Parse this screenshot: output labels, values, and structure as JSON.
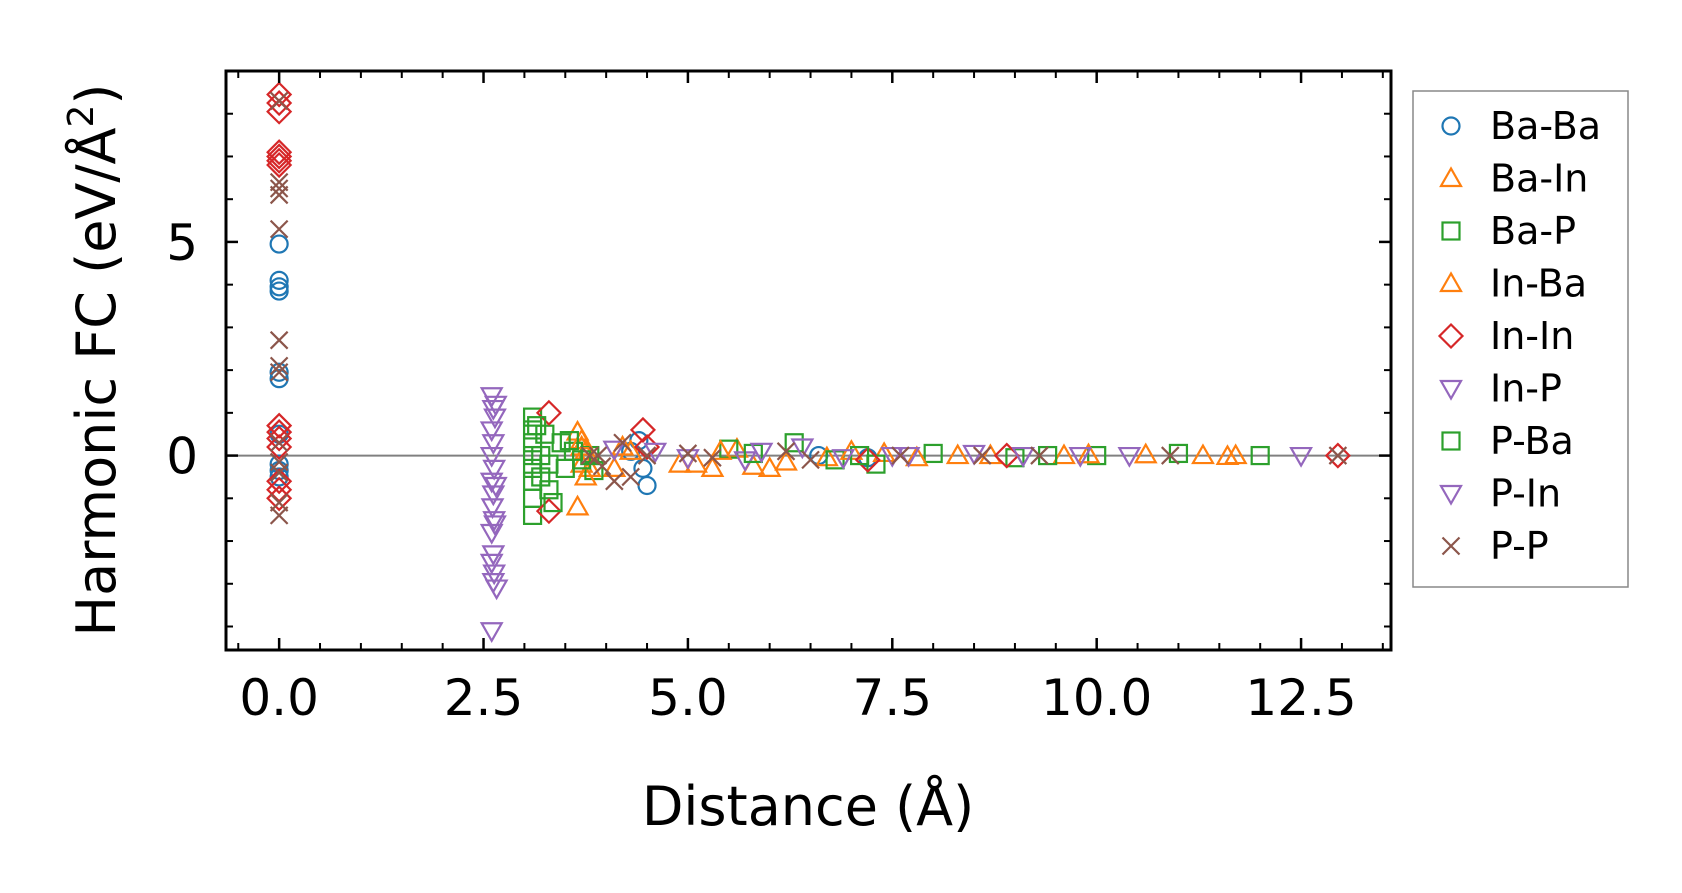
{
  "chart_data": {
    "type": "scatter",
    "xlabel": "Distance (Å)",
    "ylabel_main": "Harmonic FC (eV/Å",
    "ylabel_sup": "2",
    "ylabel_end": ")",
    "xlim": [
      -0.65,
      13.6
    ],
    "ylim": [
      -4.55,
      9.0
    ],
    "x_ticks": [
      {
        "value": 0.0,
        "label": "0.0"
      },
      {
        "value": 2.5,
        "label": "2.5"
      },
      {
        "value": 5.0,
        "label": "5.0"
      },
      {
        "value": 7.5,
        "label": "7.5"
      },
      {
        "value": 10.0,
        "label": "10.0"
      },
      {
        "value": 12.5,
        "label": "12.5"
      }
    ],
    "y_ticks": [
      {
        "value": 0,
        "label": "0"
      },
      {
        "value": 5,
        "label": "5"
      }
    ],
    "zero_line": 0,
    "legend_position": "right-outside",
    "series": [
      {
        "name": "Ba-Ba",
        "marker": "circle",
        "color": "#1f77b4",
        "points": [
          [
            0,
            4.95
          ],
          [
            0,
            4.1
          ],
          [
            0,
            3.95
          ],
          [
            0,
            3.85
          ],
          [
            0,
            1.95
          ],
          [
            0,
            1.8
          ],
          [
            0,
            0.5
          ],
          [
            0,
            -0.2
          ],
          [
            0,
            -0.35
          ],
          [
            0,
            -0.5
          ],
          [
            4.4,
            0.35
          ],
          [
            4.45,
            -0.3
          ],
          [
            4.5,
            -0.7
          ],
          [
            4.3,
            0.1
          ],
          [
            6.6,
            0.0
          ],
          [
            7.2,
            -0.05
          ]
        ]
      },
      {
        "name": "Ba-In",
        "marker": "triangle-up",
        "color": "#ff7f0e",
        "points": [
          [
            3.65,
            0.55
          ],
          [
            3.7,
            0.2
          ],
          [
            3.7,
            -0.2
          ],
          [
            3.65,
            -1.2
          ],
          [
            3.8,
            -0.3
          ],
          [
            3.75,
            0.1
          ],
          [
            4.1,
            -0.3
          ],
          [
            4.3,
            0.1
          ],
          [
            5.1,
            -0.2
          ],
          [
            5.3,
            -0.3
          ],
          [
            5.6,
            0.15
          ],
          [
            5.8,
            -0.25
          ],
          [
            6.0,
            -0.3
          ],
          [
            6.7,
            -0.05
          ],
          [
            7.4,
            0.05
          ],
          [
            8.3,
            0.0
          ],
          [
            9.6,
            0.0
          ],
          [
            10.6,
            0.02
          ],
          [
            11.6,
            -0.02
          ],
          [
            11.7,
            0.0
          ]
        ]
      },
      {
        "name": "Ba-P",
        "marker": "square",
        "color": "#2ca02c",
        "points": [
          [
            3.1,
            0.9
          ],
          [
            3.1,
            0.6
          ],
          [
            3.1,
            0.3
          ],
          [
            3.1,
            0.0
          ],
          [
            3.1,
            -0.3
          ],
          [
            3.1,
            -0.6
          ],
          [
            3.1,
            -1.0
          ],
          [
            3.1,
            -1.4
          ],
          [
            3.25,
            0.5
          ],
          [
            3.3,
            -0.2
          ],
          [
            3.3,
            -0.8
          ],
          [
            3.45,
            0.3
          ],
          [
            3.5,
            -0.3
          ],
          [
            3.6,
            0.1
          ],
          [
            3.8,
            0.0
          ],
          [
            3.85,
            -0.35
          ],
          [
            5.5,
            0.15
          ],
          [
            6.3,
            0.3
          ],
          [
            6.8,
            -0.1
          ],
          [
            7.3,
            -0.2
          ],
          [
            8.0,
            0.05
          ],
          [
            9.0,
            -0.05
          ],
          [
            10.0,
            0.0
          ],
          [
            11.0,
            0.05
          ],
          [
            12.0,
            0.0
          ]
        ]
      },
      {
        "name": "In-Ba",
        "marker": "triangle-up",
        "color": "#ff7f0e",
        "points": [
          [
            3.7,
            0.35
          ],
          [
            3.75,
            -0.5
          ],
          [
            4.2,
            0.2
          ],
          [
            4.9,
            -0.2
          ],
          [
            5.4,
            0.1
          ],
          [
            6.2,
            -0.15
          ],
          [
            7.0,
            0.1
          ],
          [
            7.8,
            -0.05
          ],
          [
            8.7,
            0.0
          ],
          [
            9.9,
            0.02
          ],
          [
            11.3,
            0.0
          ]
        ]
      },
      {
        "name": "In-In",
        "marker": "diamond",
        "color": "#d62728",
        "points": [
          [
            0,
            8.45
          ],
          [
            0,
            8.25
          ],
          [
            0,
            8.05
          ],
          [
            0,
            7.1
          ],
          [
            0,
            7.0
          ],
          [
            0,
            6.9
          ],
          [
            0,
            6.8
          ],
          [
            0,
            0.7
          ],
          [
            0,
            0.55
          ],
          [
            0,
            0.4
          ],
          [
            0,
            0.2
          ],
          [
            0,
            -0.6
          ],
          [
            0,
            -0.8
          ],
          [
            0,
            -1.0
          ],
          [
            3.3,
            1.0
          ],
          [
            3.3,
            -1.3
          ],
          [
            4.45,
            0.6
          ],
          [
            4.5,
            0.2
          ],
          [
            7.2,
            -0.1
          ],
          [
            8.9,
            0.0
          ],
          [
            12.95,
            0.0
          ]
        ]
      },
      {
        "name": "In-P",
        "marker": "triangle-down",
        "color": "#9467bd",
        "points": [
          [
            2.6,
            1.4
          ],
          [
            2.62,
            1.1
          ],
          [
            2.64,
            0.9
          ],
          [
            2.6,
            0.6
          ],
          [
            2.62,
            0.3
          ],
          [
            2.6,
            0.0
          ],
          [
            2.63,
            -0.3
          ],
          [
            2.6,
            -0.6
          ],
          [
            2.62,
            -0.9
          ],
          [
            2.61,
            -1.2
          ],
          [
            2.63,
            -1.5
          ],
          [
            2.6,
            -1.8
          ],
          [
            2.62,
            -2.3
          ],
          [
            2.6,
            -2.5
          ],
          [
            2.63,
            -2.75
          ],
          [
            2.62,
            -2.95
          ],
          [
            2.6,
            -4.1
          ],
          [
            4.6,
            0.1
          ],
          [
            5.7,
            -0.1
          ],
          [
            6.4,
            0.2
          ],
          [
            7.5,
            0.0
          ],
          [
            8.5,
            0.05
          ],
          [
            9.8,
            0.0
          ],
          [
            12.5,
            0.0
          ]
        ]
      },
      {
        "name": "P-Ba",
        "marker": "square",
        "color": "#2ca02c",
        "points": [
          [
            3.15,
            0.7
          ],
          [
            3.2,
            0.0
          ],
          [
            3.2,
            -0.5
          ],
          [
            3.35,
            -1.1
          ],
          [
            3.55,
            0.35
          ],
          [
            3.7,
            -0.1
          ],
          [
            5.8,
            0.05
          ],
          [
            7.1,
            0.0
          ],
          [
            9.4,
            0.0
          ]
        ]
      },
      {
        "name": "P-In",
        "marker": "triangle-down",
        "color": "#9467bd",
        "points": [
          [
            2.65,
            1.2
          ],
          [
            2.65,
            -0.7
          ],
          [
            2.64,
            -1.6
          ],
          [
            2.66,
            -3.1
          ],
          [
            4.1,
            0.15
          ],
          [
            5.0,
            -0.05
          ],
          [
            5.9,
            0.1
          ],
          [
            6.9,
            -0.05
          ],
          [
            7.7,
            0.0
          ],
          [
            9.1,
            0.0
          ],
          [
            10.4,
            0.0
          ]
        ]
      },
      {
        "name": "P-P",
        "marker": "x",
        "color": "#8c564b",
        "points": [
          [
            0,
            8.3
          ],
          [
            0,
            6.4
          ],
          [
            0,
            6.25
          ],
          [
            0,
            6.1
          ],
          [
            0,
            5.3
          ],
          [
            0,
            2.7
          ],
          [
            0,
            2.1
          ],
          [
            0,
            1.95
          ],
          [
            0,
            0.3
          ],
          [
            0,
            -0.15
          ],
          [
            0,
            -0.4
          ],
          [
            0,
            -1.1
          ],
          [
            0,
            -1.4
          ],
          [
            3.8,
            0.0
          ],
          [
            3.9,
            0.0
          ],
          [
            3.95,
            -0.25
          ],
          [
            4.1,
            -0.6
          ],
          [
            4.2,
            0.3
          ],
          [
            4.3,
            -0.5
          ],
          [
            4.5,
            0.0
          ],
          [
            5.0,
            0.05
          ],
          [
            5.3,
            -0.05
          ],
          [
            6.2,
            0.1
          ],
          [
            6.5,
            -0.1
          ],
          [
            7.6,
            0.0
          ],
          [
            8.6,
            0.0
          ],
          [
            9.3,
            0.0
          ],
          [
            10.9,
            0.0
          ],
          [
            12.95,
            0.0
          ]
        ]
      }
    ]
  }
}
